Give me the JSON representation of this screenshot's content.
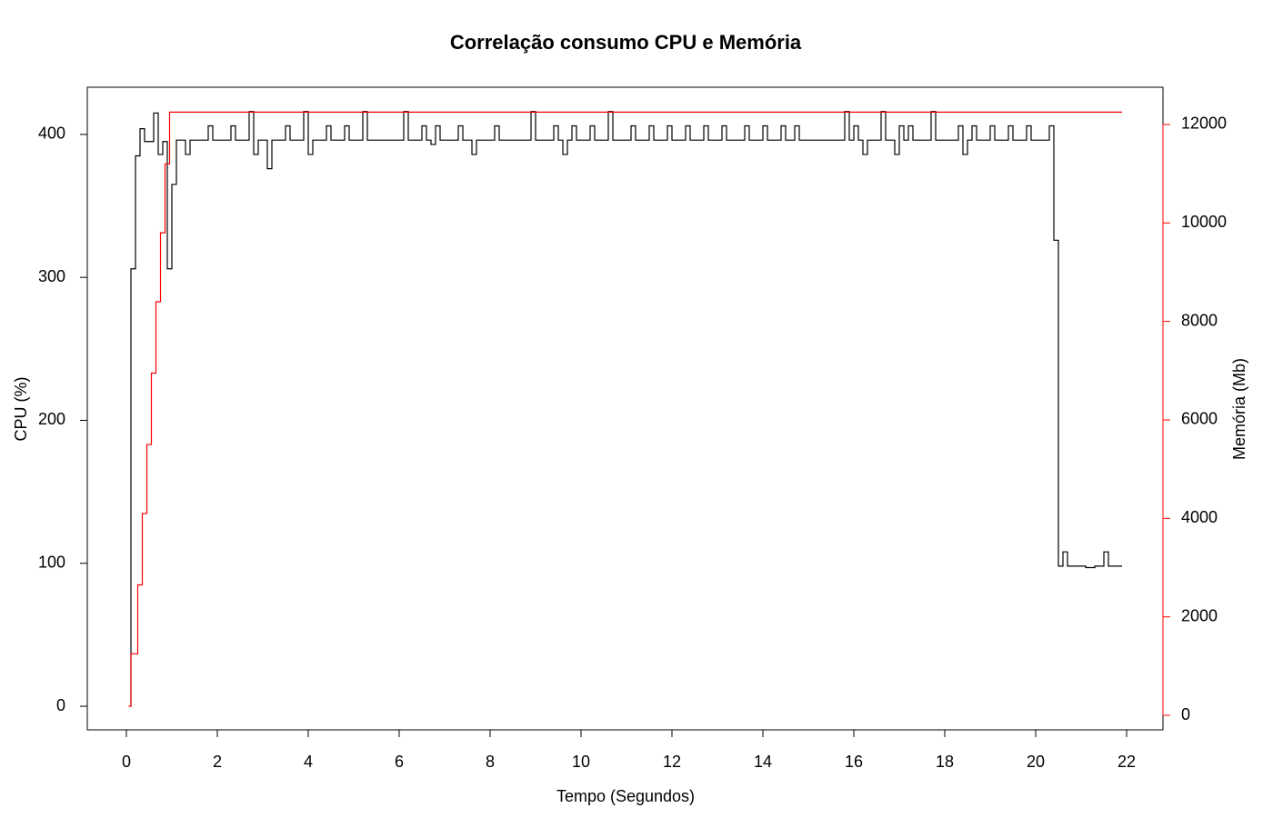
{
  "chart_data": {
    "type": "step",
    "title": "Correlação consumo CPU e Memória",
    "x_label": "Tempo (Segundos)",
    "y_label": "CPU (%)",
    "y2_label": "Memória (Mb)",
    "y2_color": "#ff0000",
    "xlim": [
      -0.86,
      22.8
    ],
    "xticks": [
      0,
      2,
      4,
      6,
      8,
      10,
      12,
      14,
      16,
      18,
      20,
      22
    ],
    "ylim": [
      -16.5,
      433
    ],
    "yticks": [
      0,
      100,
      200,
      300,
      400
    ],
    "y2lim": [
      -295,
      12756
    ],
    "y2ticks": [
      0,
      2000,
      4000,
      6000,
      8000,
      10000,
      12000
    ],
    "series": [
      {
        "name": "CPU",
        "color": "#000000",
        "x": [
          0.07,
          0.1,
          0.2,
          0.3,
          0.4,
          0.6,
          0.7,
          0.8,
          0.9,
          1.0,
          1.1,
          1.3,
          1.4,
          1.8,
          1.9,
          2.3,
          2.4,
          2.7,
          2.8,
          2.9,
          3.1,
          3.2,
          3.5,
          3.6,
          3.9,
          4.0,
          4.1,
          4.4,
          4.5,
          4.8,
          4.9,
          5.2,
          5.3,
          6.1,
          6.2,
          6.5,
          6.6,
          6.7,
          6.8,
          6.9,
          7.3,
          7.4,
          7.6,
          7.7,
          8.1,
          8.2,
          8.9,
          9.0,
          9.4,
          9.5,
          9.6,
          9.7,
          9.8,
          9.9,
          10.2,
          10.3,
          10.6,
          10.7,
          11.1,
          11.2,
          11.5,
          11.6,
          11.9,
          12.0,
          12.3,
          12.4,
          12.7,
          12.8,
          13.1,
          13.2,
          13.6,
          13.7,
          14.0,
          14.1,
          14.4,
          14.5,
          14.7,
          14.8,
          15.8,
          15.9,
          16.0,
          16.1,
          16.2,
          16.3,
          16.6,
          16.7,
          16.9,
          17.0,
          17.1,
          17.2,
          17.3,
          17.7,
          17.8,
          18.3,
          18.4,
          18.5,
          18.6,
          18.7,
          19.0,
          19.1,
          19.4,
          19.5,
          19.8,
          19.9,
          20.3,
          20.4,
          20.5,
          20.6,
          20.7,
          21.1,
          21.3,
          21.5,
          21.6,
          21.9
        ],
        "values": [
          0,
          306,
          385,
          404,
          395,
          415,
          386,
          395,
          306,
          365,
          396,
          386,
          396,
          406,
          396,
          406,
          396,
          416,
          386,
          396,
          376,
          396,
          406,
          396,
          416,
          386,
          396,
          406,
          396,
          406,
          396,
          416,
          396,
          416,
          396,
          406,
          396,
          393,
          406,
          396,
          406,
          396,
          386,
          396,
          406,
          396,
          416,
          396,
          406,
          396,
          386,
          396,
          406,
          396,
          406,
          396,
          416,
          396,
          406,
          396,
          406,
          396,
          406,
          396,
          406,
          396,
          406,
          396,
          406,
          396,
          406,
          396,
          406,
          396,
          406,
          396,
          406,
          396,
          416,
          396,
          406,
          396,
          386,
          396,
          416,
          396,
          386,
          406,
          396,
          406,
          396,
          416,
          396,
          406,
          386,
          396,
          406,
          396,
          406,
          396,
          406,
          396,
          406,
          396,
          406,
          326,
          98,
          108,
          98,
          97,
          98,
          108,
          98,
          98
        ]
      },
      {
        "name": "Memória",
        "color": "#ff0000",
        "axis": "y2",
        "x": [
          0.05,
          0.1,
          0.25,
          0.35,
          0.45,
          0.55,
          0.65,
          0.75,
          0.85,
          0.95,
          21.9
        ],
        "values": [
          185,
          1250,
          2650,
          4100,
          5500,
          6950,
          8400,
          9800,
          11200,
          12250,
          12250
        ]
      }
    ]
  }
}
